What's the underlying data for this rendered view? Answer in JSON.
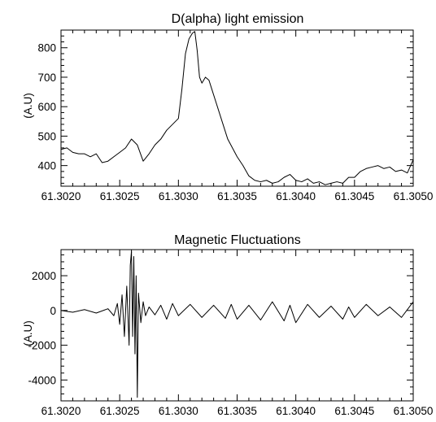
{
  "chart_data": [
    {
      "type": "line",
      "title": "D(alpha) light emission",
      "xlabel": "",
      "ylabel": "(A.U)",
      "xlim": [
        61.302,
        61.305
      ],
      "ylim": [
        330,
        860
      ],
      "x_ticks": [
        "61.3020",
        "61.3025",
        "61.3030",
        "61.3035",
        "61.3040",
        "61.3045",
        "61.3050"
      ],
      "y_ticks": [
        "400",
        "500",
        "600",
        "700",
        "800"
      ],
      "line_color": "#000000",
      "series": [
        {
          "x": [
            61.302,
            61.30205,
            61.3021,
            61.30215,
            61.3022,
            61.30225,
            61.3023,
            61.30235,
            61.3024,
            61.30245,
            61.3025,
            61.30255,
            61.3026,
            61.30265,
            61.3027,
            61.30275,
            61.3028,
            61.30285,
            61.3029,
            61.30295,
            61.303,
            61.30303,
            61.30306,
            61.30309,
            61.30312,
            61.30314,
            61.30316,
            61.30318,
            61.3032,
            61.30323,
            61.30326,
            61.3033,
            61.30334,
            61.30338,
            61.30342,
            61.30346,
            61.3035,
            61.30355,
            61.3036,
            61.30365,
            61.3037,
            61.30375,
            61.3038,
            61.30385,
            61.3039,
            61.30395,
            61.304,
            61.30405,
            61.3041,
            61.30415,
            61.3042,
            61.30425,
            61.3043,
            61.30435,
            61.3044,
            61.30445,
            61.3045,
            61.30455,
            61.3046,
            61.30465,
            61.3047,
            61.30475,
            61.3048,
            61.30485,
            61.3049,
            61.30495,
            61.305
          ],
          "y": [
            455,
            460,
            445,
            440,
            440,
            430,
            440,
            410,
            415,
            430,
            445,
            460,
            490,
            470,
            415,
            440,
            470,
            490,
            520,
            540,
            560,
            660,
            780,
            830,
            850,
            855,
            790,
            700,
            680,
            700,
            690,
            640,
            590,
            540,
            490,
            460,
            430,
            400,
            365,
            350,
            345,
            350,
            340,
            345,
            360,
            370,
            350,
            345,
            355,
            340,
            345,
            335,
            340,
            345,
            340,
            360,
            360,
            380,
            390,
            395,
            400,
            390,
            395,
            380,
            385,
            375,
            420
          ]
        }
      ]
    },
    {
      "type": "line",
      "title": "Magnetic Fluctuations",
      "xlabel": "",
      "ylabel": "(A.U)",
      "xlim": [
        61.302,
        61.305
      ],
      "ylim": [
        -5200,
        3500
      ],
      "x_ticks": [
        "61.3020",
        "61.3025",
        "61.3030",
        "61.3035",
        "61.3040",
        "61.3045",
        "61.3050"
      ],
      "y_ticks": [
        "-4000",
        "-2000",
        "0",
        "2000"
      ],
      "line_color": "#000000",
      "series": [
        {
          "x": [
            61.302,
            61.3021,
            61.3022,
            61.3023,
            61.3024,
            61.30245,
            61.30248,
            61.3025,
            61.30252,
            61.30254,
            61.30256,
            61.30258,
            61.30259,
            61.3026,
            61.30261,
            61.30262,
            61.30263,
            61.30264,
            61.30265,
            61.30266,
            61.30268,
            61.3027,
            61.30272,
            61.30275,
            61.3028,
            61.30285,
            61.3029,
            61.30295,
            61.303,
            61.3031,
            61.3032,
            61.3033,
            61.3034,
            61.30345,
            61.3035,
            61.3036,
            61.3037,
            61.3038,
            61.3039,
            61.30395,
            61.304,
            61.3041,
            61.3042,
            61.3043,
            61.3044,
            61.30445,
            61.3045,
            61.3046,
            61.3047,
            61.3048,
            61.3049,
            61.305
          ],
          "y": [
            0,
            -100,
            50,
            -150,
            100,
            -300,
            400,
            -800,
            900,
            -1500,
            1400,
            -2000,
            2600,
            3400,
            -1500,
            3100,
            -2500,
            2000,
            -5000,
            1000,
            -700,
            500,
            -300,
            200,
            -250,
            300,
            -500,
            400,
            -300,
            350,
            -400,
            300,
            -450,
            350,
            -500,
            300,
            -550,
            500,
            -600,
            300,
            -700,
            350,
            -400,
            250,
            -500,
            200,
            -400,
            350,
            -300,
            200,
            -400,
            500
          ]
        }
      ]
    }
  ]
}
